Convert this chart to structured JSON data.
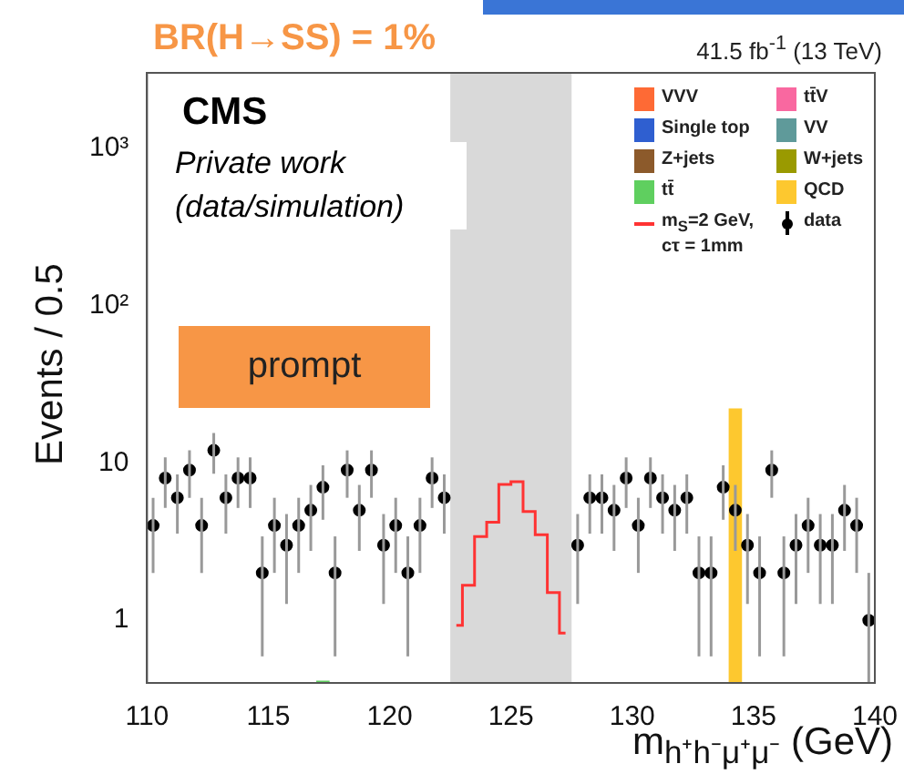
{
  "chart_data": {
    "type": "bar",
    "title": "BR(H→SS) = 1%",
    "xlabel": "m$_{h⁺h⁻μ⁺μ⁻}$ (GeV)",
    "ylabel": "Events / 0.5",
    "annotations": [
      "41.5 fb$^{-1}$ (13 TeV)",
      "CMS",
      "Private work (data/simulation)",
      "prompt"
    ],
    "x": [
      110.25,
      110.75,
      111.25,
      111.75,
      112.25,
      112.75,
      113.25,
      113.75,
      114.25,
      114.75,
      115.25,
      115.75,
      116.25,
      116.75,
      117.25,
      117.75,
      118.25,
      118.75,
      119.25,
      119.75,
      120.25,
      120.75,
      121.25,
      121.75,
      122.25,
      122.75,
      123.25,
      123.75,
      124.25,
      124.75,
      125.25,
      125.75,
      126.25,
      126.75,
      127.25,
      127.75,
      128.25,
      128.75,
      129.25,
      129.75,
      130.25,
      130.75,
      131.25,
      131.75,
      132.25,
      132.75,
      133.25,
      133.75,
      134.25,
      134.75,
      135.25,
      135.75,
      136.25,
      136.75,
      137.25,
      137.75,
      138.25,
      138.75,
      139.25,
      139.75
    ],
    "stacked": true,
    "series": [
      {
        "name": "VVV",
        "color": "#fe6a35",
        "values": [
          null,
          null,
          null,
          null,
          null,
          null,
          null,
          null,
          null,
          null,
          null,
          null,
          null,
          null,
          null,
          null,
          null,
          null,
          null,
          null,
          null,
          null,
          null,
          null,
          null,
          null,
          null,
          null,
          null,
          null,
          null,
          null,
          null,
          null,
          null,
          null,
          null,
          null,
          null,
          null,
          null,
          null,
          null,
          null,
          null,
          null,
          null,
          null,
          null,
          null,
          null,
          null,
          null,
          null,
          null,
          null,
          null,
          null,
          null,
          null
        ]
      },
      {
        "name": "tt̄V",
        "color": "#f968a0",
        "values": [
          null,
          null,
          null,
          null,
          null,
          null,
          null,
          null,
          null,
          null,
          null,
          null,
          null,
          null,
          null,
          null,
          null,
          null,
          null,
          null,
          null,
          null,
          null,
          null,
          null,
          null,
          null,
          null,
          null,
          null,
          null,
          null,
          null,
          null,
          null,
          null,
          null,
          null,
          null,
          null,
          null,
          null,
          null,
          null,
          null,
          null,
          null,
          null,
          null,
          null,
          null,
          null,
          null,
          null,
          null,
          null,
          null,
          null,
          null,
          null
        ]
      },
      {
        "name": "Single top",
        "color": "#2f5fd0",
        "values": [
          null,
          null,
          null,
          null,
          null,
          null,
          null,
          null,
          null,
          null,
          null,
          null,
          null,
          null,
          null,
          null,
          null,
          null,
          null,
          null,
          null,
          null,
          null,
          null,
          null,
          null,
          null,
          null,
          null,
          null,
          null,
          null,
          null,
          null,
          null,
          null,
          null,
          null,
          null,
          null,
          null,
          null,
          null,
          null,
          null,
          null,
          null,
          null,
          null,
          null,
          null,
          null,
          null,
          null,
          null,
          null,
          null,
          null,
          null,
          null
        ]
      },
      {
        "name": "VV",
        "color": "#5f9a9a",
        "values": [
          null,
          null,
          null,
          null,
          null,
          null,
          null,
          null,
          null,
          null,
          null,
          null,
          null,
          null,
          null,
          null,
          null,
          null,
          null,
          null,
          null,
          null,
          null,
          null,
          null,
          null,
          null,
          null,
          null,
          null,
          null,
          null,
          null,
          null,
          null,
          null,
          null,
          null,
          null,
          null,
          null,
          null,
          null,
          null,
          null,
          null,
          null,
          null,
          null,
          null,
          null,
          null,
          null,
          null,
          null,
          null,
          null,
          null,
          null,
          null
        ]
      },
      {
        "name": "Z+jets",
        "color": "#8c5a2b",
        "values": [
          null,
          null,
          null,
          null,
          null,
          null,
          null,
          null,
          null,
          null,
          null,
          null,
          null,
          null,
          null,
          null,
          null,
          null,
          null,
          null,
          null,
          null,
          null,
          null,
          null,
          null,
          null,
          null,
          null,
          null,
          null,
          null,
          null,
          null,
          null,
          null,
          null,
          null,
          null,
          null,
          null,
          null,
          null,
          null,
          null,
          null,
          null,
          null,
          null,
          null,
          null,
          null,
          null,
          null,
          null,
          null,
          null,
          null,
          null,
          null
        ]
      },
      {
        "name": "W+jets",
        "color": "#9a9a00",
        "values": [
          null,
          null,
          null,
          null,
          null,
          null,
          null,
          null,
          null,
          null,
          null,
          null,
          null,
          null,
          null,
          null,
          null,
          null,
          null,
          null,
          null,
          null,
          null,
          null,
          null,
          null,
          null,
          null,
          null,
          null,
          null,
          null,
          null,
          null,
          null,
          null,
          null,
          null,
          null,
          null,
          null,
          null,
          null,
          null,
          null,
          null,
          null,
          null,
          null,
          null,
          null,
          null,
          null,
          null,
          null,
          null,
          null,
          null,
          null,
          null
        ]
      },
      {
        "name": "tt̄",
        "color": "#5fcf5f",
        "values": [
          null,
          null,
          null,
          null,
          null,
          null,
          null,
          null,
          null,
          null,
          null,
          null,
          null,
          null,
          0.41,
          null,
          null,
          null,
          null,
          null,
          null,
          null,
          null,
          null,
          null,
          null,
          null,
          null,
          null,
          null,
          null,
          null,
          null,
          null,
          null,
          null,
          null,
          null,
          null,
          null,
          null,
          null,
          null,
          null,
          null,
          null,
          null,
          null,
          null,
          null,
          null,
          null,
          null,
          null,
          null,
          null,
          null,
          null,
          null,
          null
        ]
      },
      {
        "name": "QCD",
        "color": "#fdc82f",
        "values": [
          null,
          null,
          null,
          null,
          null,
          null,
          null,
          null,
          null,
          null,
          null,
          null,
          null,
          null,
          null,
          null,
          null,
          null,
          null,
          null,
          null,
          null,
          null,
          null,
          null,
          null,
          null,
          null,
          null,
          null,
          null,
          null,
          null,
          null,
          null,
          null,
          null,
          null,
          null,
          null,
          null,
          null,
          null,
          null,
          null,
          null,
          null,
          null,
          22,
          null,
          null,
          null,
          null,
          null,
          null,
          null,
          null,
          null,
          null,
          null
        ]
      },
      {
        "name": "m$_{S}$=2 GeV, cτ = 1mm",
        "type": "step",
        "color": "#ff3333",
        "values": [
          null,
          null,
          null,
          null,
          null,
          null,
          null,
          null,
          null,
          null,
          null,
          null,
          null,
          null,
          null,
          null,
          null,
          null,
          null,
          null,
          null,
          null,
          null,
          null,
          null,
          0.93,
          1.67,
          3.4,
          4.2,
          7.3,
          7.6,
          4.9,
          3.5,
          1.5,
          0.83,
          null,
          null,
          null,
          null,
          null,
          null,
          null,
          null,
          null,
          null,
          null,
          null,
          null,
          null,
          null,
          null,
          null,
          null,
          null,
          null,
          null,
          null,
          null,
          null,
          null
        ]
      },
      {
        "name": "data",
        "type": "scatter",
        "color": "#000000",
        "marker": "circle",
        "values": [
          4,
          8,
          6,
          9,
          4,
          12,
          6,
          8,
          8,
          2,
          4,
          3,
          4,
          5,
          7,
          2,
          9,
          5,
          9,
          3,
          4,
          2,
          4,
          8,
          6,
          null,
          null,
          null,
          null,
          null,
          null,
          null,
          null,
          null,
          null,
          3,
          6,
          6,
          5,
          8,
          4,
          8,
          6,
          5,
          6,
          2,
          2,
          7,
          5,
          3,
          2,
          9,
          2,
          3,
          4,
          3,
          3,
          5,
          4,
          1
        ],
        "errors": [
          2,
          2.83,
          2.45,
          3,
          2,
          3.46,
          2.45,
          2.83,
          2.83,
          1.41,
          2,
          1.73,
          2,
          2.24,
          2.65,
          1.41,
          3,
          2.24,
          3,
          1.73,
          2,
          1.41,
          2,
          2.83,
          2.45,
          null,
          null,
          null,
          null,
          null,
          null,
          null,
          null,
          null,
          null,
          1.73,
          2.45,
          2.45,
          2.24,
          2.83,
          2,
          2.83,
          2.45,
          2.24,
          2.45,
          1.41,
          1.41,
          2.65,
          2.24,
          1.73,
          1.41,
          3,
          1.41,
          1.73,
          2,
          1.73,
          1.73,
          2.24,
          2,
          [
            0.4,
            2
          ]
        ]
      }
    ],
    "bands": [
      {
        "axis": "x",
        "from": 122.5,
        "to": 127.5,
        "color": "#d9d9d9"
      }
    ],
    "log": "y",
    "xlim": [
      110,
      140
    ],
    "xticks": [
      110,
      115,
      120,
      125,
      130,
      135,
      140
    ],
    "ylim": [
      0.4,
      3000
    ],
    "yticks": [
      1,
      10,
      {
        "value": 100,
        "label": "10²"
      },
      {
        "value": 1000,
        "label": "10³"
      }
    ],
    "grid": false,
    "legend": "top right"
  }
}
